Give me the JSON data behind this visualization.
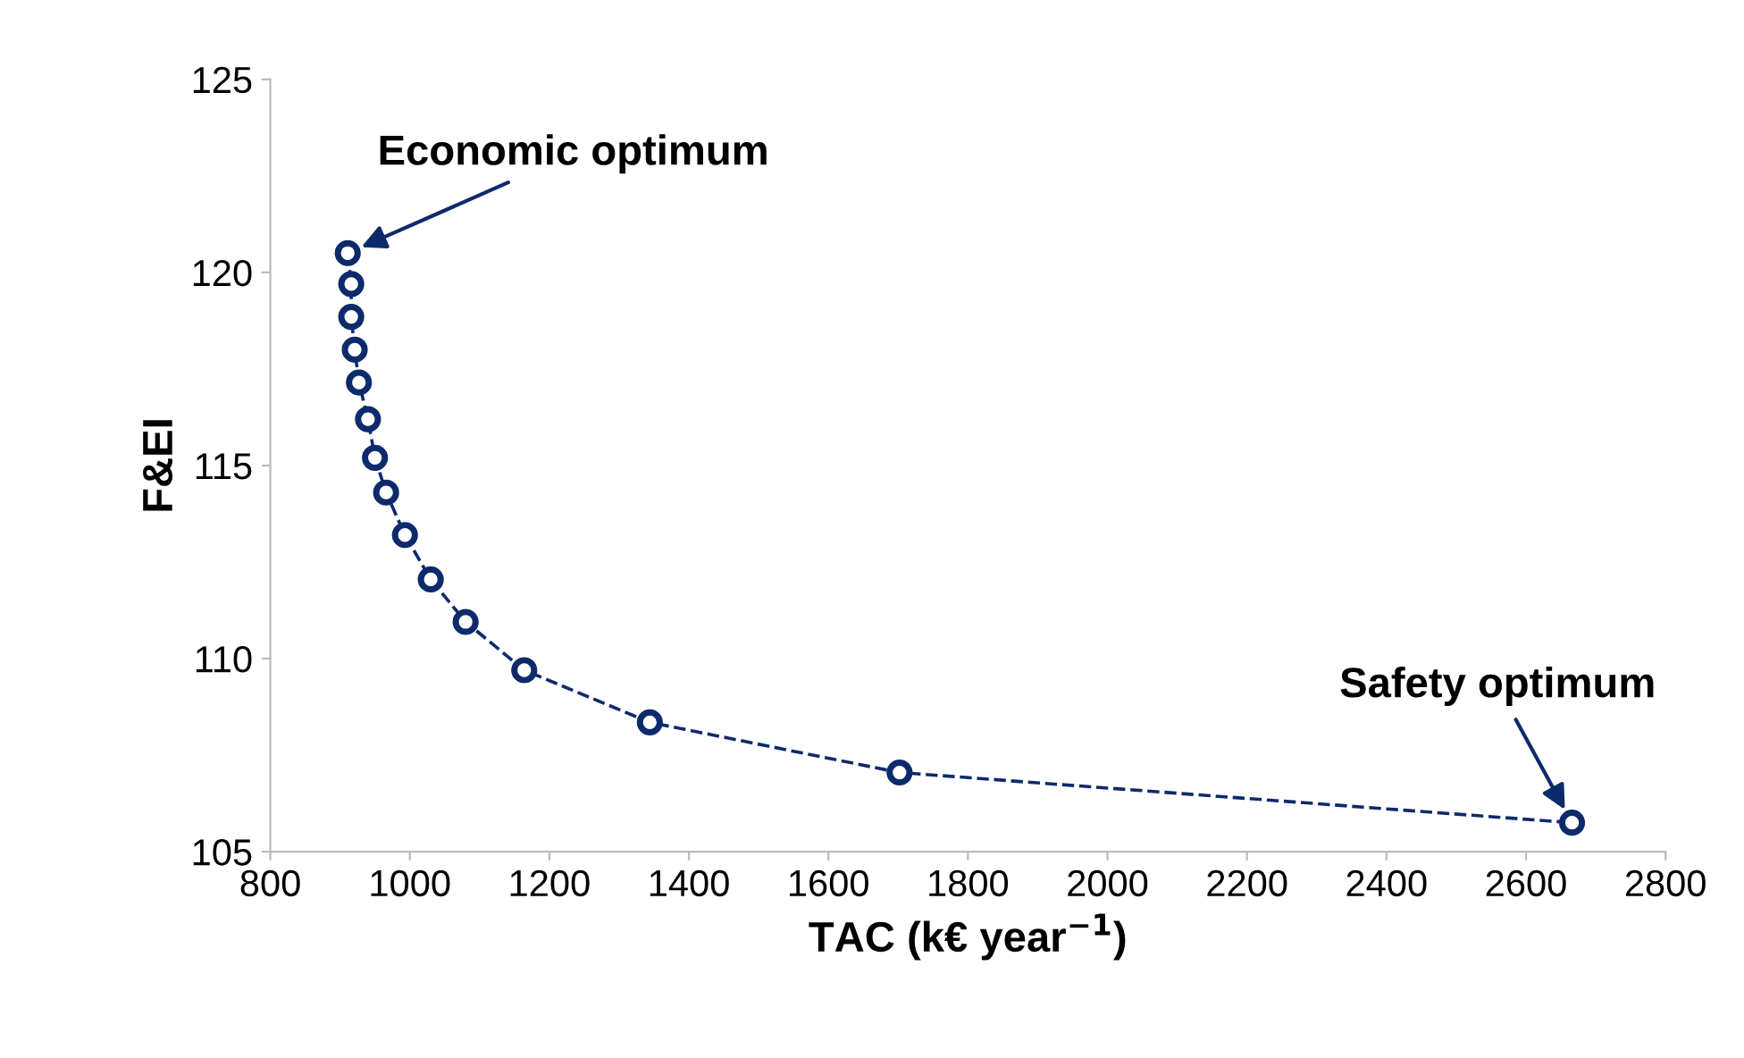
{
  "chart_data": {
    "type": "line",
    "xlabel": "TAC (k€ year$^{−1}$)",
    "ylabel": "F&EI",
    "x": [
      911,
      916,
      916,
      921,
      927,
      940,
      950,
      966,
      993,
      1030,
      1080,
      1164,
      1344,
      1702,
      2666
    ],
    "series": [
      {
        "color": "#0d2a6b",
        "values": [
          120.5,
          119.7,
          118.85,
          118.0,
          117.15,
          116.2,
          115.2,
          114.3,
          113.2,
          112.05,
          110.95,
          109.7,
          108.35,
          107.05,
          105.75
        ]
      }
    ],
    "xlim": [
      800,
      2800
    ],
    "xticks": [
      800,
      1000,
      1200,
      1400,
      1600,
      1800,
      2000,
      2200,
      2400,
      2600,
      2800
    ],
    "ylim": [
      105,
      125
    ],
    "yticks": [
      105,
      110,
      115,
      120,
      125
    ],
    "marker": "circle",
    "line_style": "dashed",
    "grid": false,
    "legend": false,
    "annotations": [
      {
        "text": "Economic optimum",
        "x": 911,
        "y": 120.5
      },
      {
        "text": "Safety optimum",
        "x": 2666,
        "y": 105.75
      }
    ]
  }
}
